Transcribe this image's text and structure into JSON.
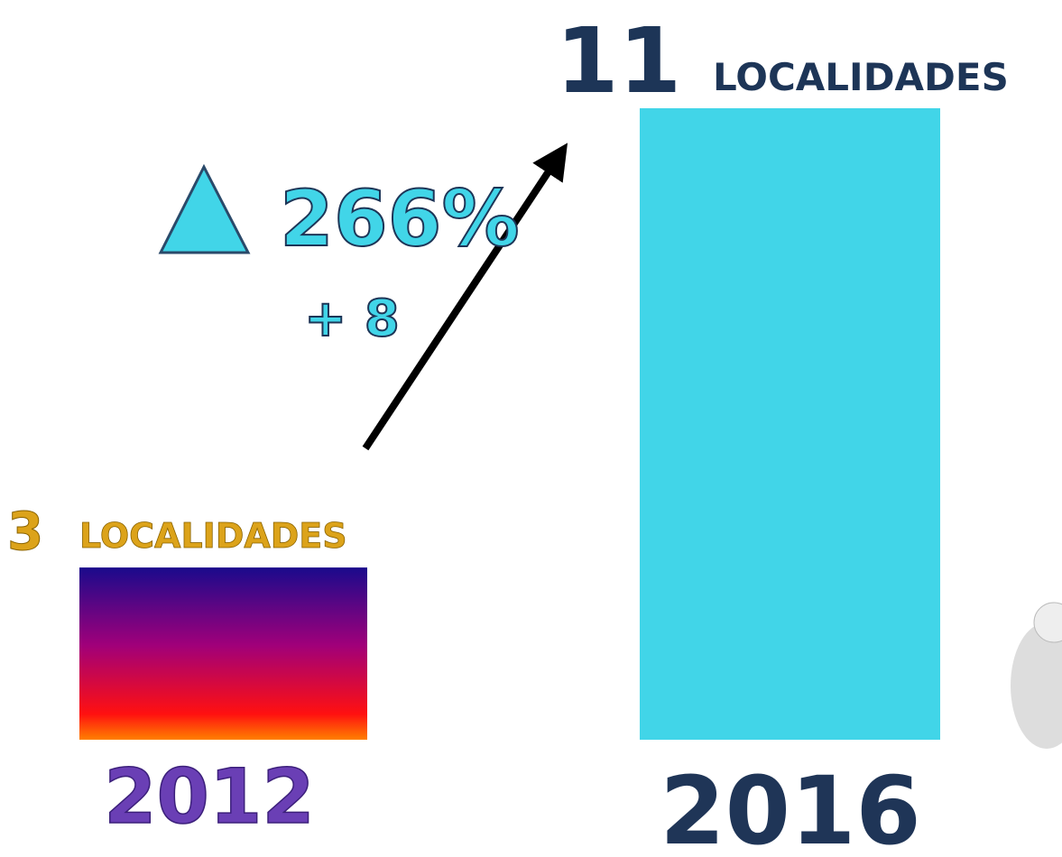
{
  "chart_data": {
    "type": "bar",
    "categories": [
      "2012",
      "2016"
    ],
    "values": [
      3,
      11
    ],
    "value_unit": "LOCALIDADES",
    "colors": [
      "#1a0a8c",
      "#41d5e8"
    ],
    "annotations": [
      "266%",
      "+ 8"
    ]
  }
}
